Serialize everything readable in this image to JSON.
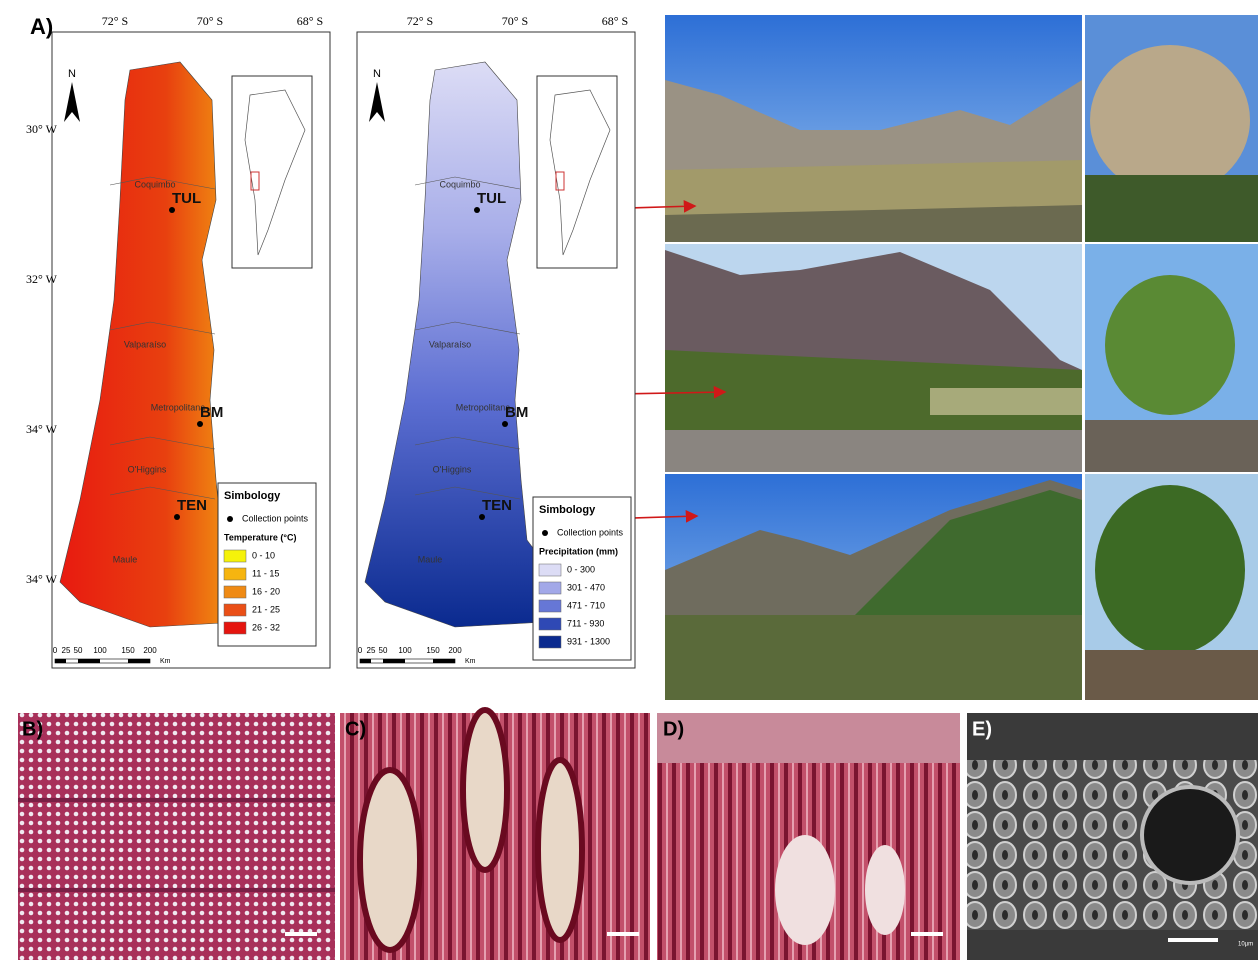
{
  "panels": {
    "a": "A)",
    "b": "B)",
    "c": "C)",
    "d": "D)",
    "e": "E)"
  },
  "maps": [
    {
      "top_ticks": [
        "72° S",
        "70° S",
        "68° S"
      ],
      "left_ticks": [
        "30° W",
        "32° W",
        "34° W",
        "34° W"
      ],
      "north": "N",
      "regions": [
        "Coquimbo",
        "Valparaíso",
        "Metropolitana",
        "O'Higgins",
        "Maule"
      ],
      "sites": [
        "TUL",
        "BM",
        "TEN"
      ],
      "legend": {
        "title": "Simbology",
        "points": "Collection points",
        "variable": "Temperature (°C)",
        "classes": [
          "0 - 10",
          "11 - 15",
          "16 - 20",
          "21 - 25",
          "26 - 32"
        ],
        "colors": [
          "#f5f20a",
          "#f6b50f",
          "#ef8a14",
          "#ea4f17",
          "#e5150f"
        ]
      },
      "scale": [
        "0",
        "25",
        "50",
        "100",
        "150",
        "200"
      ],
      "scale_unit": "Km"
    },
    {
      "top_ticks": [
        "72° S",
        "70° S",
        "68° S"
      ],
      "north": "N",
      "regions": [
        "Coquimbo",
        "Valparaíso",
        "Metropolitana",
        "O'Higgins",
        "Maule"
      ],
      "sites": [
        "TUL",
        "BM",
        "TEN"
      ],
      "legend": {
        "title": "Simbology",
        "points": "Collection points",
        "variable": "Precipitation (mm)",
        "classes": [
          "0 - 300",
          "301 - 470",
          "471 - 710",
          "711 - 930",
          "931 - 1300"
        ],
        "colors": [
          "#dcdcf5",
          "#a2a8e8",
          "#6677d6",
          "#2f49b5",
          "#0a2a8f"
        ]
      },
      "scale": [
        "0",
        "25",
        "50",
        "100",
        "150",
        "200"
      ],
      "scale_unit": "Km"
    }
  ],
  "micrograph_scale": "10µm"
}
